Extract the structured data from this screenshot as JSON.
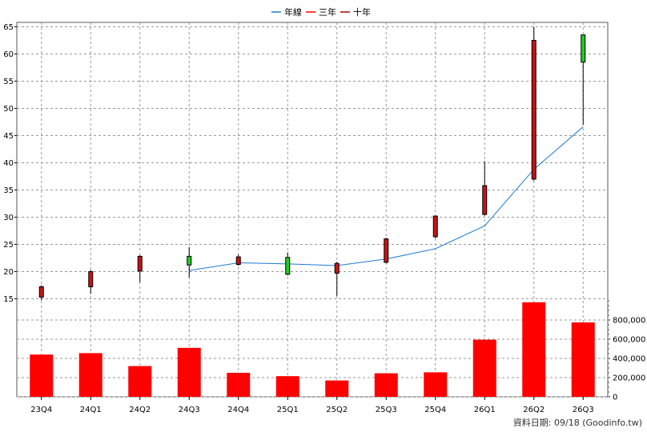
{
  "chart_data": {
    "type": "candlestick",
    "legend": [
      {
        "label": "年線",
        "color": "#1f7ad2"
      },
      {
        "label": "三年",
        "color": "#ff0000"
      },
      {
        "label": "十年",
        "color": "#b00000"
      }
    ],
    "categories": [
      "23Q4",
      "24Q1",
      "24Q2",
      "24Q3",
      "24Q4",
      "25Q1",
      "25Q2",
      "25Q3",
      "25Q4",
      "26Q1",
      "26Q2",
      "26Q3"
    ],
    "price_axis": {
      "ticks": [
        15,
        20,
        25,
        30,
        35,
        40,
        45,
        50,
        55,
        60,
        65
      ],
      "tick_labels": [
        "15",
        "20",
        "25",
        "30",
        "35",
        "40",
        "45",
        "50",
        "55",
        "60",
        "65"
      ],
      "min": 10.8,
      "max": 65.8
    },
    "volume_axis": {
      "ticks": [
        0,
        200000,
        400000,
        600000,
        800000
      ],
      "tick_labels": [
        "0",
        "200,000",
        "400,000",
        "600,000",
        "800,000"
      ],
      "max": 1000000
    },
    "candles": [
      {
        "quarter": "23Q4",
        "open": 15.3,
        "high": 17.5,
        "low": 14.7,
        "close": 17.2,
        "color": "red"
      },
      {
        "quarter": "24Q1",
        "open": 17.2,
        "high": 20.3,
        "low": 15.9,
        "close": 20.0,
        "color": "red"
      },
      {
        "quarter": "24Q2",
        "open": 20.1,
        "high": 23.0,
        "low": 18.0,
        "close": 22.8,
        "color": "red"
      },
      {
        "quarter": "24Q3",
        "open": 22.8,
        "high": 24.5,
        "low": 18.9,
        "close": 21.2,
        "color": "green"
      },
      {
        "quarter": "24Q4",
        "open": 21.3,
        "high": 23.1,
        "low": 21.1,
        "close": 22.7,
        "color": "red"
      },
      {
        "quarter": "25Q1",
        "open": 22.6,
        "high": 23.5,
        "low": 19.3,
        "close": 19.5,
        "color": "green"
      },
      {
        "quarter": "25Q2",
        "open": 19.7,
        "high": 21.8,
        "low": 15.5,
        "close": 21.5,
        "color": "red"
      },
      {
        "quarter": "25Q3",
        "open": 21.7,
        "high": 26.2,
        "low": 21.5,
        "close": 26.0,
        "color": "red"
      },
      {
        "quarter": "25Q4",
        "open": 26.4,
        "high": 30.2,
        "low": 26.1,
        "close": 30.2,
        "color": "red"
      },
      {
        "quarter": "26Q1",
        "open": 30.5,
        "high": 40.3,
        "low": 30.3,
        "close": 35.8,
        "color": "red"
      },
      {
        "quarter": "26Q2",
        "open": 37.0,
        "high": 65.0,
        "low": 36.7,
        "close": 62.5,
        "color": "red"
      },
      {
        "quarter": "26Q3",
        "open": 63.5,
        "high": 63.5,
        "low": 47.0,
        "close": 58.5,
        "color": "green"
      }
    ],
    "annual_line": {
      "name": "年線",
      "start_index": 3,
      "values": [
        20.2,
        21.6,
        21.4,
        21.1,
        22.3,
        24.2,
        28.4,
        38.8,
        46.6
      ]
    },
    "volume": [
      440000,
      455000,
      320000,
      510000,
      250000,
      215000,
      170000,
      245000,
      255000,
      595000,
      985000,
      775000
    ],
    "grid": true
  },
  "footer": {
    "source": "資料日期: 09/18 (Goodinfo.tw)"
  }
}
